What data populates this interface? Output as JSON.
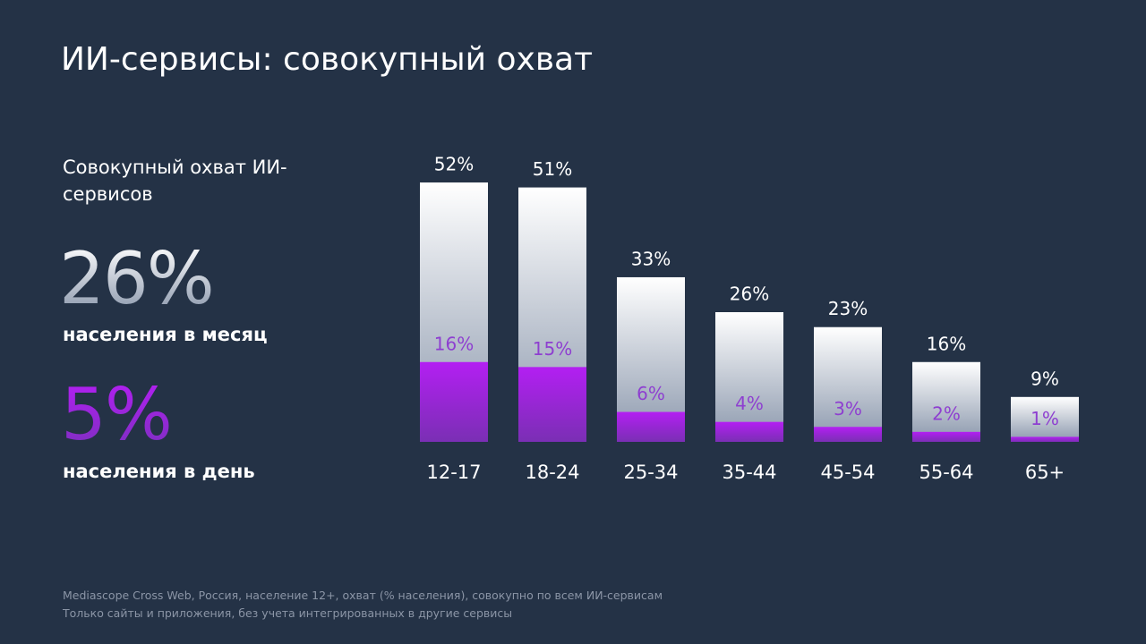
{
  "header": {
    "title": "ИИ-сервисы: совокупный охват"
  },
  "summary": {
    "label": "Совокупный охват ИИ-сервисов",
    "monthly_value": "26%",
    "monthly_label": "населения в месяц",
    "daily_value": "5%",
    "daily_label": "населения в день"
  },
  "chart_data": {
    "type": "bar",
    "categories": [
      "12-17",
      "18-24",
      "25-34",
      "35-44",
      "45-54",
      "55-64",
      "65+"
    ],
    "series": [
      {
        "color": "#ffffff",
        "values": [
          52,
          51,
          33,
          26,
          23,
          16,
          9
        ],
        "value_labels": [
          "52%",
          "51%",
          "33%",
          "26%",
          "23%",
          "16%",
          "9%"
        ]
      },
      {
        "color": "#b31ff2",
        "values": [
          16,
          15,
          6,
          4,
          3,
          2,
          1
        ],
        "value_labels": [
          "16%",
          "15%",
          "6%",
          "4%",
          "3%",
          "2%",
          "1%"
        ]
      }
    ]
  },
  "footnotes": [
    "Mediascope Cross Web, Россия, население 12+, охват (% населения), совокупно по всем ИИ-сервисам",
    "Только сайты и приложения, без учета интегрированных в другие сервисы"
  ]
}
